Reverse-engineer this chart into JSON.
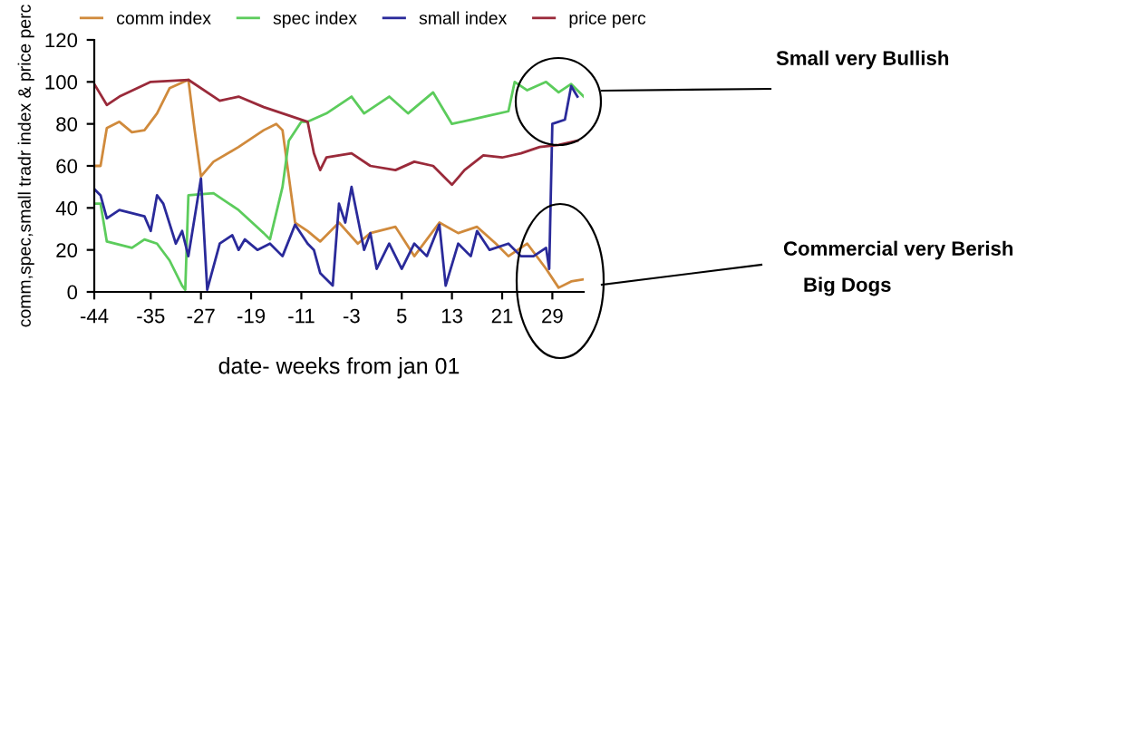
{
  "chart_data": {
    "type": "line",
    "xlabel": "date- weeks from jan 01",
    "ylabel": "comm,spec,small tradr index & price perc",
    "xlim": [
      -44,
      34
    ],
    "xticks": [
      -44,
      -35,
      -27,
      -19,
      -11,
      -3,
      5,
      13,
      21,
      29
    ],
    "ylim": [
      0,
      120
    ],
    "yticks": [
      0,
      20,
      40,
      60,
      80,
      100,
      120
    ],
    "grid": false,
    "legend": "top",
    "marker": "none",
    "line_style": "solid",
    "series": [
      {
        "name": "comm index",
        "color": "#d08a3c",
        "x": [
          -44,
          -43,
          -42,
          -40,
          -38,
          -36,
          -34,
          -32,
          -29,
          -28,
          -27,
          -25,
          -21,
          -17,
          -15,
          -14,
          -12,
          -10,
          -8,
          -5,
          -2,
          0,
          4,
          7,
          11,
          14,
          17,
          20,
          22,
          25,
          28,
          30,
          32,
          34
        ],
        "values": [
          60,
          60,
          78,
          81,
          76,
          77,
          85,
          97,
          101,
          77,
          55,
          62,
          69,
          77,
          80,
          77,
          33,
          29,
          24,
          33,
          23,
          28,
          31,
          17,
          33,
          28,
          31,
          23,
          17,
          23,
          11,
          2,
          5,
          6
        ]
      },
      {
        "name": "spec index",
        "color": "#5ccc5c",
        "x": [
          -44,
          -43,
          -42,
          -38,
          -36,
          -34,
          -32,
          -30,
          -29.5,
          -29,
          -25,
          -21,
          -17,
          -16,
          -14,
          -13,
          -11,
          -10,
          -7,
          -3,
          -1,
          3,
          6,
          10,
          13,
          16,
          19,
          22,
          23,
          25,
          28,
          30,
          32,
          34
        ],
        "values": [
          42,
          42,
          24,
          21,
          25,
          23,
          15,
          3,
          1,
          46,
          47,
          39,
          28,
          25,
          50,
          72,
          81,
          81,
          85,
          93,
          85,
          93,
          85,
          95,
          80,
          82,
          84,
          86,
          100,
          96,
          100,
          95,
          99,
          93
        ]
      },
      {
        "name": "small index",
        "color": "#2a2a9a",
        "x": [
          -44,
          -43,
          -42,
          -40,
          -36,
          -35,
          -34,
          -33,
          -31,
          -30,
          -29,
          -27,
          -26,
          -24,
          -22,
          -21,
          -20,
          -18,
          -16,
          -14,
          -12,
          -10,
          -9,
          -8,
          -6,
          -5,
          -4,
          -3,
          -1,
          0,
          1,
          3,
          5,
          7,
          9,
          11,
          12,
          14,
          16,
          17,
          19,
          22,
          24,
          26,
          28,
          28.5,
          29,
          31,
          32,
          33
        ],
        "values": [
          49,
          46,
          35,
          39,
          36,
          29,
          46,
          42,
          23,
          29,
          17,
          54,
          1,
          23,
          27,
          20,
          25,
          20,
          23,
          17,
          32,
          23,
          20,
          9,
          3,
          42,
          33,
          50,
          20,
          28,
          11,
          23,
          11,
          23,
          17,
          32,
          3,
          23,
          17,
          29,
          20,
          23,
          17,
          17,
          21,
          11,
          80,
          82,
          98,
          93
        ]
      },
      {
        "name": "price perc",
        "color": "#9a2a3a",
        "x": [
          -44,
          -42,
          -40,
          -35,
          -29,
          -24,
          -21,
          -17,
          -13,
          -10,
          -9,
          -8,
          -7,
          -3,
          0,
          4,
          7,
          10,
          13,
          15,
          18,
          21,
          24,
          27,
          30,
          33
        ],
        "values": [
          99,
          89,
          93,
          100,
          101,
          91,
          93,
          88,
          84,
          81,
          66,
          58,
          64,
          66,
          60,
          58,
          62,
          60,
          51,
          58,
          65,
          64,
          66,
          69,
          70,
          72
        ]
      }
    ],
    "annotations": [
      "Small very Bullish",
      "Commercial very Berish",
      "Big Dogs"
    ]
  }
}
